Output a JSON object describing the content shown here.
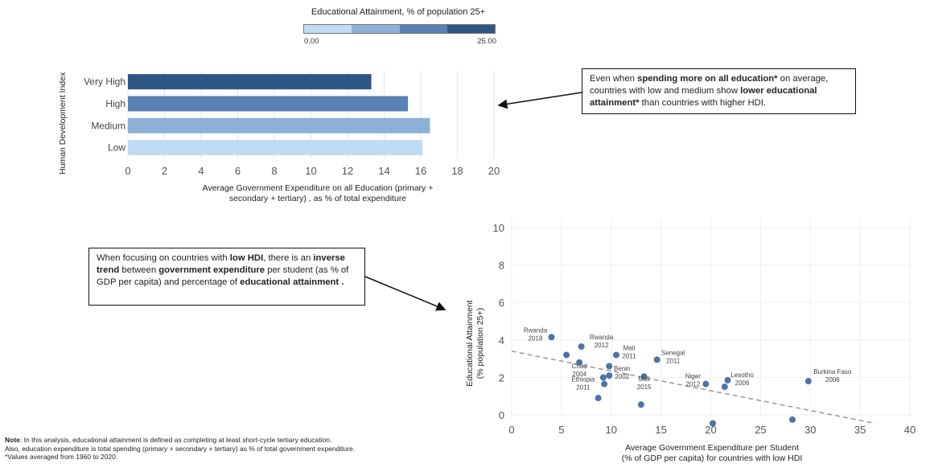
{
  "legend": {
    "title": "Educational Attainment, % of population 25+",
    "min_label": "0.00",
    "max_label": "25.00",
    "colors": [
      "#c0dcf2",
      "#8cb0d6",
      "#5a80b4",
      "#2f5585"
    ]
  },
  "bar_chart": {
    "y_axis_title": "Human Development Index",
    "x_axis_title_line1": "Average Government Expenditure on all Education (primary +",
    "x_axis_title_line2": "secondary + tertiary) , as % of total expenditure",
    "x_ticks": [
      "0",
      "2",
      "4",
      "6",
      "8",
      "10",
      "12",
      "14",
      "16",
      "18",
      "20"
    ]
  },
  "scatter": {
    "y_axis_title_line1": "Educational Attainment",
    "y_axis_title_line2": "(% population 25+)",
    "x_axis_title_line1": "Average Government Expenditure per Student",
    "x_axis_title_line2": "(% of GDP per capita) for countries with low HDI",
    "x_ticks": [
      "0",
      "5",
      "10",
      "15",
      "20",
      "25",
      "30",
      "35",
      "40"
    ],
    "y_ticks": [
      "0",
      "2",
      "4",
      "6",
      "8",
      "10"
    ]
  },
  "callout_top": {
    "t1": "Even when ",
    "b1": "spending more on all education*",
    "t2": " on average, countries with low and medium show ",
    "b2": "lower educational attainment*",
    "t3": " than countries with higher HDI."
  },
  "callout_mid": {
    "t1": "When focusing on countries with ",
    "b1": "low HDI",
    "t2": ", there is an ",
    "b2": "inverse trend",
    "t3": " between ",
    "b3": "government expenditure",
    "t4": " per student (as % of GDP per capita) and percentage of ",
    "b4": "educational attainment ."
  },
  "note": {
    "bold": "Note",
    "line1": ": In this analysis, educational attainment is defined as completing at least short-cycle tertiary education.",
    "line2": "Also, education expenditure is total spending (primary + secondary + tertiary) as % of total government expenditure.",
    "line3": "*Values averaged from 1960 to 2020."
  },
  "chart_data": [
    {
      "type": "bar",
      "orientation": "horizontal",
      "categories": [
        "Very High",
        "High",
        "Medium",
        "Low"
      ],
      "values": [
        13.3,
        15.3,
        16.5,
        16.1
      ],
      "color_values": [
        "#2f5585",
        "#5a80b4",
        "#8cb0d6",
        "#c0dcf2"
      ],
      "xlim": [
        0,
        20
      ],
      "grid": true
    },
    {
      "type": "scatter",
      "xlim": [
        0,
        40
      ],
      "ylim": [
        0,
        10
      ],
      "trend": {
        "x0": 0,
        "y0": 3.4,
        "x1": 36.5,
        "y1": -0.45,
        "style": "dashed"
      },
      "points": [
        {
          "x": 4.0,
          "y": 4.15,
          "label1": "Rwanda",
          "label2": "2018"
        },
        {
          "x": 7.0,
          "y": 3.65,
          "label1": "Rwanda",
          "label2": "2012"
        },
        {
          "x": 5.5,
          "y": 3.2,
          "label1": "",
          "label2": ""
        },
        {
          "x": 6.8,
          "y": 2.8,
          "label1": "Chad",
          "label2": "2004"
        },
        {
          "x": 10.5,
          "y": 3.2,
          "label1": "Mali",
          "label2": "2011"
        },
        {
          "x": 9.8,
          "y": 2.6,
          "label1": "",
          "label2": ""
        },
        {
          "x": 9.8,
          "y": 2.1,
          "label1": "Benin",
          "label2": "2002"
        },
        {
          "x": 9.2,
          "y": 2.0,
          "label1": "Ethiopia",
          "label2": "2011"
        },
        {
          "x": 9.3,
          "y": 1.65,
          "label1": "",
          "label2": ""
        },
        {
          "x": 8.7,
          "y": 0.9,
          "label1": "",
          "label2": ""
        },
        {
          "x": 13.3,
          "y": 2.05,
          "label1": "Mali",
          "label2": "2015"
        },
        {
          "x": 13.0,
          "y": 0.55,
          "label1": "",
          "label2": ""
        },
        {
          "x": 14.6,
          "y": 2.95,
          "label1": "Senegal",
          "label2": "2011"
        },
        {
          "x": 19.5,
          "y": 1.65,
          "label1": "Niger",
          "label2": "2012"
        },
        {
          "x": 21.7,
          "y": 1.85,
          "label1": "Lesotho",
          "label2": "2006"
        },
        {
          "x": 21.4,
          "y": 1.5,
          "label1": "",
          "label2": ""
        },
        {
          "x": 29.8,
          "y": 1.8,
          "label1": "Burkina Faso",
          "label2": "2006"
        },
        {
          "x": 20.2,
          "y": -0.45,
          "label1": "",
          "label2": ""
        },
        {
          "x": 28.2,
          "y": -0.25,
          "label1": "",
          "label2": ""
        }
      ]
    }
  ]
}
